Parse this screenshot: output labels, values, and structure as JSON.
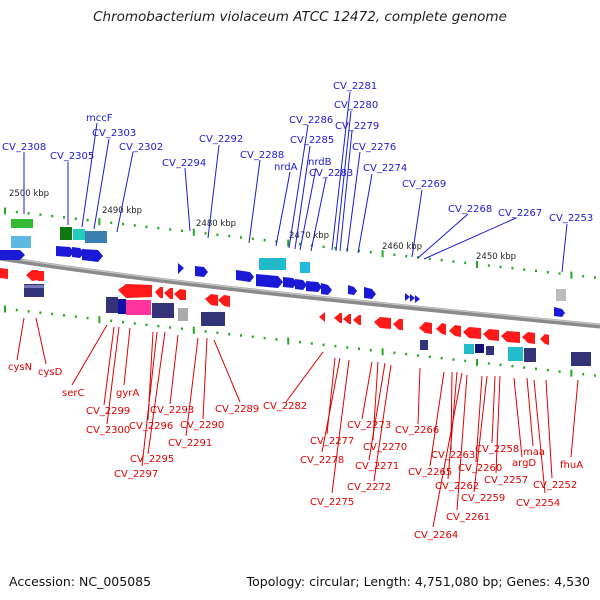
{
  "title": "Chromobacterium violaceum ATCC 12472, complete genome",
  "accession": "Accession: NC_005085",
  "topology": "Topology: circular; Length: 4,751,080 bp; Genes: 4,530",
  "colors": {
    "forward_gene": "#1a1ad6",
    "reverse_gene": "#ff1a1a",
    "backbone": "#888888",
    "tick": "#22aa22",
    "feature_teal": "#22bbcc",
    "feature_navy": "#333377",
    "feature_pink": "#ff3399",
    "feature_green": "#33aa33"
  },
  "kbp_labels": [
    "2500 kbp",
    "2490 kbp",
    "2480 kbp",
    "2470 kbp",
    "2460 kbp",
    "2450 kbp"
  ],
  "forward_genes": [
    "CV_2308",
    "mccF",
    "CV_2303",
    "CV_2305",
    "CV_2302",
    "CV_2294",
    "CV_2292",
    "CV_2288",
    "nrdA",
    "CV_2286",
    "CV_2285",
    "nrdB",
    "CV_2283",
    "CV_2281",
    "CV_2280",
    "CV_2279",
    "CV_2276",
    "CV_2274",
    "CV_2269",
    "CV_2268",
    "CV_2267",
    "CV_2253"
  ],
  "reverse_genes": [
    "cysN",
    "cysD",
    "serC",
    "gyrA",
    "CV_2299",
    "CV_2300",
    "CV_2296",
    "CV_2297",
    "CV_2295",
    "CV_2293",
    "CV_2291",
    "CV_2290",
    "CV_2289",
    "CV_2282",
    "CV_2277",
    "CV_2278",
    "CV_2275",
    "CV_2273",
    "CV_2270",
    "CV_2271",
    "CV_2272",
    "CV_2266",
    "CV_2265",
    "CV_2263",
    "CV_2262",
    "CV_2264",
    "CV_2261",
    "CV_2260",
    "CV_2259",
    "CV_2258",
    "CV_2257",
    "argD",
    "maa",
    "CV_2254",
    "CV_2252",
    "fhuA"
  ]
}
